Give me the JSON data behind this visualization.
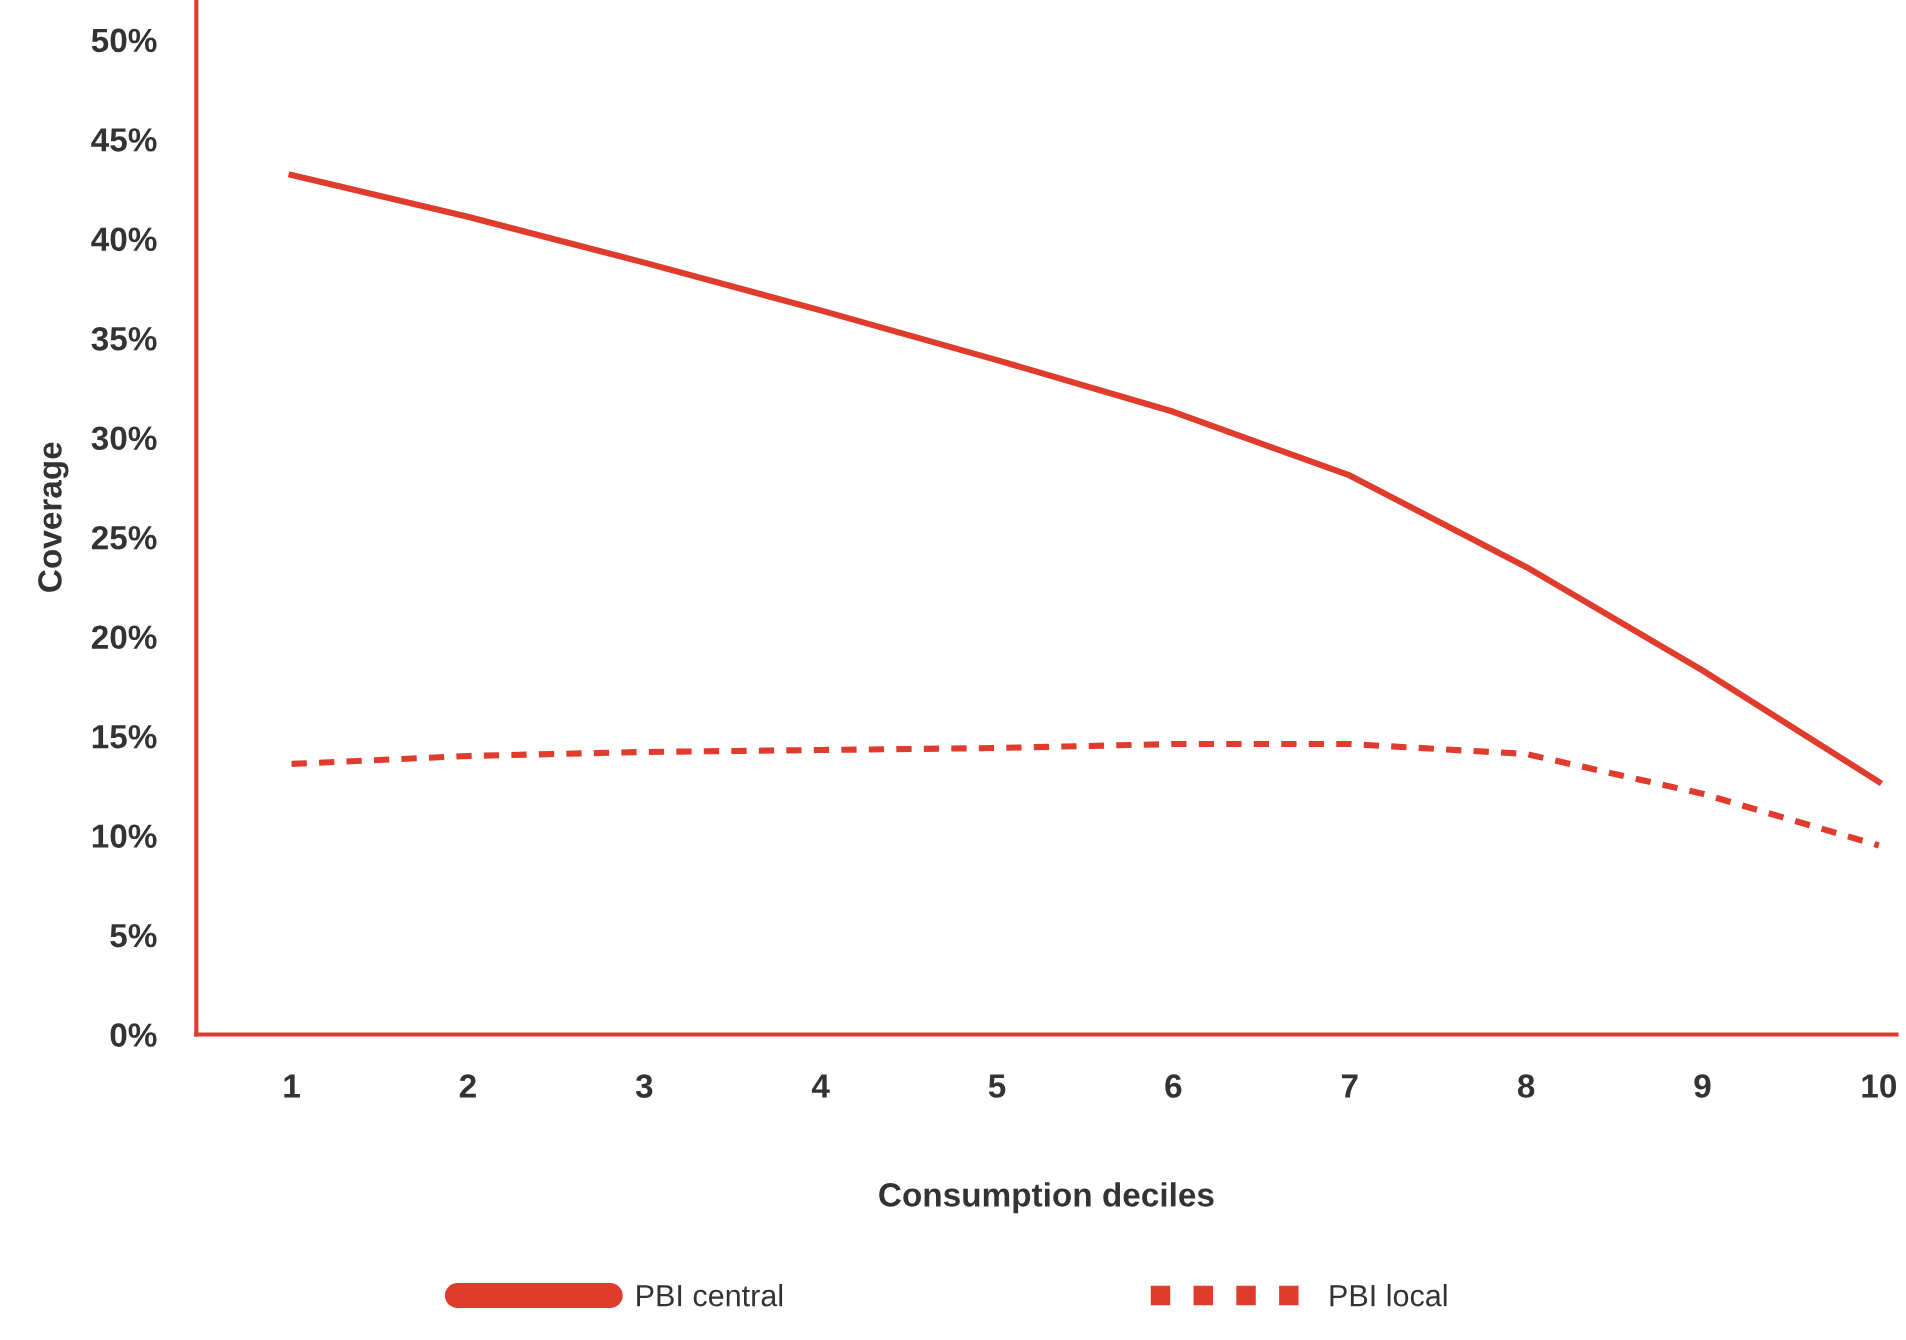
{
  "chart_data": {
    "type": "line",
    "xlabel": "Consumption deciles",
    "ylabel": "Coverage",
    "categories": [
      "1",
      "2",
      "3",
      "4",
      "5",
      "6",
      "7",
      "8",
      "9",
      "10"
    ],
    "series": [
      {
        "name": "PBI central",
        "color": "#e03c2d",
        "line_style": "solid",
        "values": [
          43.2,
          41.1,
          38.8,
          36.4,
          33.9,
          31.3,
          28.1,
          23.5,
          18.3,
          12.7
        ]
      },
      {
        "name": "PBI local",
        "color": "#e03c2d",
        "line_style": "dashed",
        "values": [
          13.6,
          14.0,
          14.2,
          14.3,
          14.4,
          14.6,
          14.6,
          14.1,
          12.1,
          9.5
        ]
      }
    ],
    "ylim": [
      0,
      52
    ],
    "yticks": [
      {
        "value": 0,
        "label": "0%"
      },
      {
        "value": 5,
        "label": "5%"
      },
      {
        "value": 10,
        "label": "10%"
      },
      {
        "value": 15,
        "label": "15%"
      },
      {
        "value": 20,
        "label": "20%"
      },
      {
        "value": 25,
        "label": "25%"
      },
      {
        "value": 30,
        "label": "30%"
      },
      {
        "value": 35,
        "label": "35%"
      },
      {
        "value": 40,
        "label": "40%"
      },
      {
        "value": 45,
        "label": "45%"
      },
      {
        "value": 50,
        "label": "50%"
      }
    ],
    "grid": false,
    "legend": "bottom",
    "marker": "none"
  }
}
